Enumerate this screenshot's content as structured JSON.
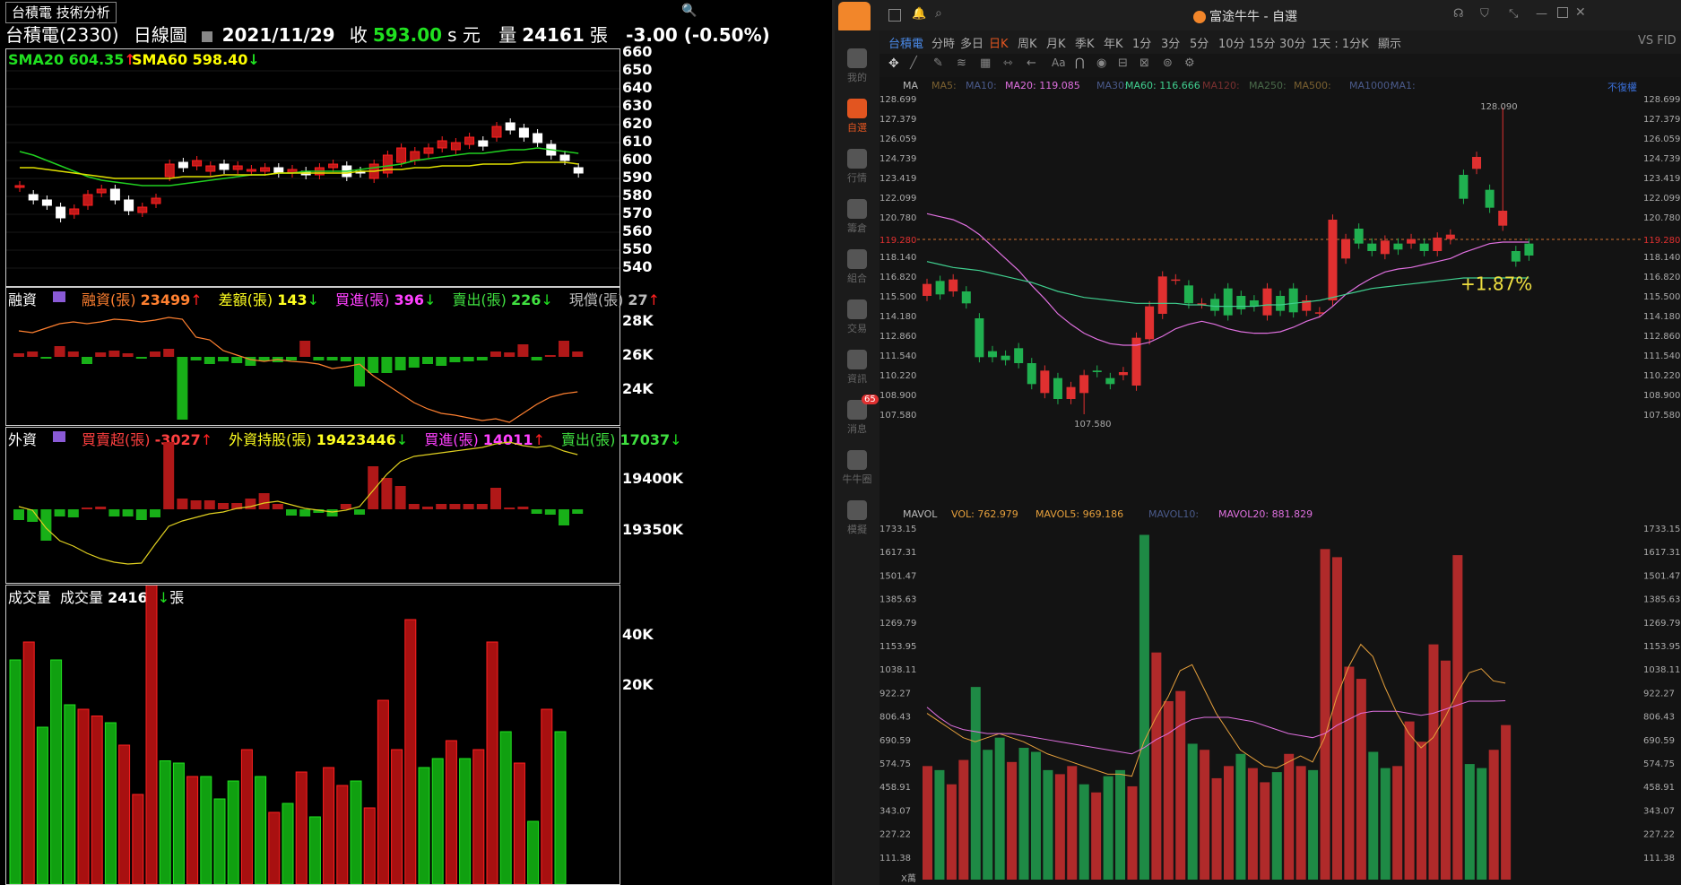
{
  "left": {
    "title_tab": "台積電 技術分析",
    "header": {
      "stock": "台積電(2330)",
      "chart_type": "日線圖",
      "date": "2021/11/29",
      "close_label": "收",
      "close_value": "593.00",
      "close_unit": "s 元",
      "volume_label": "量",
      "volume_value": "24161",
      "volume_unit": "張",
      "change": "-3.00 (-0.50%)"
    },
    "price_pane": {
      "sma20": "SMA20 604.35",
      "sma60": "SMA60 598.40",
      "axis": [
        "660",
        "650",
        "640",
        "630",
        "620",
        "610",
        "600",
        "590",
        "580",
        "570",
        "560",
        "550",
        "540"
      ]
    },
    "margin_pane": {
      "title": "融資",
      "items": [
        {
          "label": "融資(張)",
          "value": "23499",
          "dir": "up"
        },
        {
          "label": "差額(張)",
          "value": "143",
          "dir": "down"
        },
        {
          "label": "買進(張)",
          "value": "396",
          "dir": "down"
        },
        {
          "label": "賣出(張)",
          "value": "226",
          "dir": "down"
        },
        {
          "label": "現償(張)",
          "value": "27",
          "dir": "up"
        }
      ],
      "axis": [
        "28K",
        "26K",
        "24K"
      ]
    },
    "foreign_pane": {
      "title": "外資",
      "items": [
        {
          "label": "買賣超(張)",
          "value": "-3027",
          "dir": "up"
        },
        {
          "label": "外資持股(張)",
          "value": "19423446",
          "dir": "down"
        },
        {
          "label": "買進(張)",
          "value": "14011",
          "dir": "up"
        },
        {
          "label": "賣出(張)",
          "value": "17037",
          "dir": "down"
        }
      ],
      "axis": [
        "19400K",
        "19350K"
      ]
    },
    "volume_pane": {
      "title": "成交量",
      "label": "成交量",
      "value": "24161",
      "unit": "張",
      "axis": [
        "40K",
        "20K"
      ]
    }
  },
  "right": {
    "window_title": "富途牛牛 - 自選",
    "periods": [
      "台積電",
      "分時",
      "多日",
      "日K",
      "周K",
      "月K",
      "季K",
      "年K",
      "1分",
      "3分",
      "5分",
      "10分",
      "15分",
      "30分",
      "1天 : 1分K",
      "顯示"
    ],
    "active_period": "日K",
    "nav": [
      {
        "label": "我的",
        "icon": "user-icon"
      },
      {
        "label": "自選",
        "icon": "watchlist-icon"
      },
      {
        "label": "行情",
        "icon": "market-icon"
      },
      {
        "label": "籌倉",
        "icon": "funnel-icon"
      },
      {
        "label": "組合",
        "icon": "pie-icon"
      },
      {
        "label": "交易",
        "icon": "trade-icon"
      },
      {
        "label": "資訊",
        "icon": "news-icon"
      },
      {
        "label": "消息",
        "icon": "message-icon",
        "badge": "65"
      },
      {
        "label": "牛牛圈",
        "icon": "community-icon"
      },
      {
        "label": "模擬",
        "icon": "gamepad-icon"
      }
    ],
    "ma_legend": [
      {
        "label": "MA",
        "color": "#bbbbbb"
      },
      {
        "label": "MA5:",
        "color": "#7a6030"
      },
      {
        "label": "MA10:",
        "color": "#4a5a8a"
      },
      {
        "label": "MA20: 119.085",
        "color": "#e070e0"
      },
      {
        "label": "MA30:",
        "color": "#4a5a8a"
      },
      {
        "label": "MA60: 116.666",
        "color": "#40d090"
      },
      {
        "label": "MA120:",
        "color": "#7a3030"
      },
      {
        "label": "MA250:",
        "color": "#4a6a4a"
      },
      {
        "label": "MA500:",
        "color": "#7a6030"
      },
      {
        "label": "MA1000:",
        "color": "#4a5a8a"
      },
      {
        "label": "MA1:",
        "color": "#4a5a8a"
      }
    ],
    "no_restore": "不復權",
    "price_axis": [
      "128.699",
      "127.379",
      "126.059",
      "124.739",
      "123.419",
      "122.099",
      "120.780",
      "119.280",
      "118.140",
      "116.820",
      "115.500",
      "114.180",
      "112.860",
      "111.540",
      "110.220",
      "108.900",
      "107.580"
    ],
    "current_price": "119.280",
    "high_label": "128.090",
    "low_label": "107.580",
    "pct_change": "+1.87%",
    "vol_legend": [
      {
        "label": "MAVOL",
        "color": "#bbbbbb"
      },
      {
        "label": "VOL: 762.979",
        "color": "#e6a03c"
      },
      {
        "label": "MAVOL5: 969.186",
        "color": "#e6a03c"
      },
      {
        "label": "MAVOL10:",
        "color": "#4a5a8a"
      },
      {
        "label": "MAVOL20: 881.829",
        "color": "#e070e0"
      }
    ],
    "vol_axis": [
      "1733.15",
      "1617.31",
      "1501.47",
      "1385.63",
      "1269.79",
      "1153.95",
      "1038.11",
      "922.27",
      "806.43",
      "690.59",
      "574.75",
      "458.91",
      "343.07",
      "227.22",
      "111.38"
    ],
    "x_unit": "X萬",
    "vs_label": "VS FID"
  },
  "colors": {
    "up": "#e03030",
    "down": "#20c040",
    "left_up": "#ff2020",
    "left_down": "#20e020"
  }
}
